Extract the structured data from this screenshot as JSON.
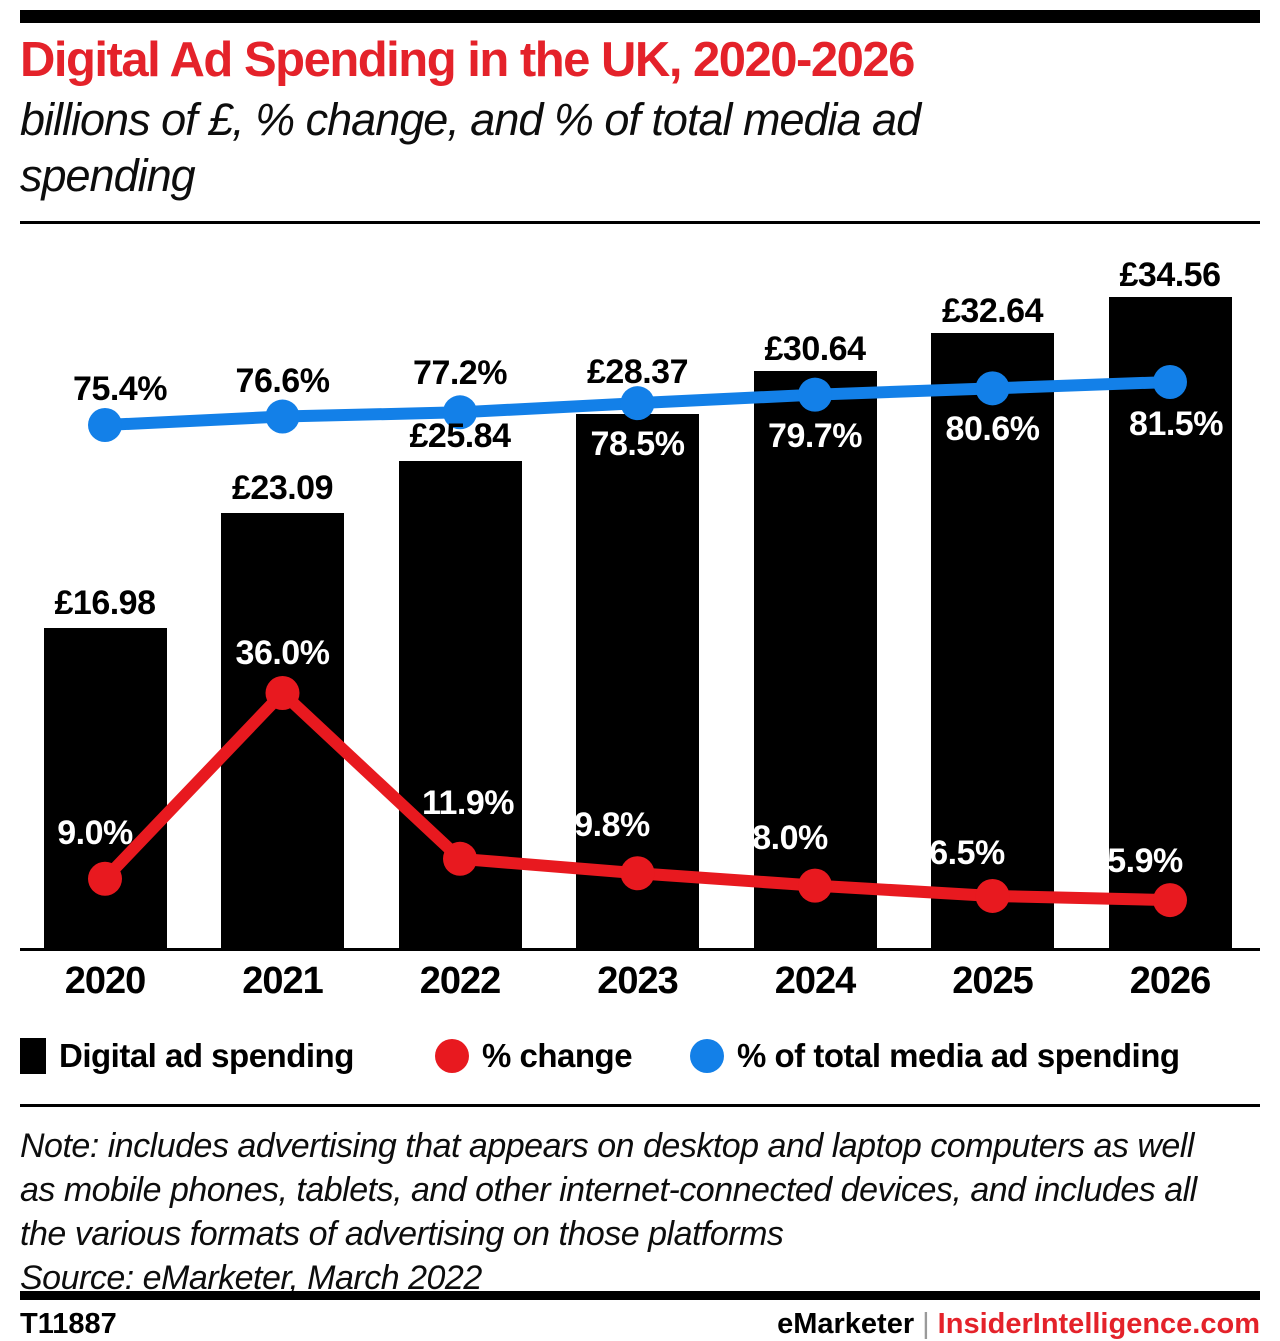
{
  "header": {
    "title": "Digital Ad Spending in the UK, 2020-2026",
    "subtitle_line1": "billions of £, % change, and % of total media ad",
    "subtitle_line2": "spending"
  },
  "chart_data": {
    "type": "bar",
    "title": "Digital Ad Spending in the UK, 2020-2026",
    "subtitle": "billions of £, % change, and % of total media ad spending",
    "categories": [
      "2020",
      "2021",
      "2022",
      "2023",
      "2024",
      "2025",
      "2026"
    ],
    "series": [
      {
        "name": "Digital ad spending",
        "type": "bar",
        "unit": "billions of £",
        "color": "#000000",
        "values": [
          16.98,
          23.09,
          25.84,
          28.37,
          30.64,
          32.64,
          34.56
        ],
        "labels": [
          "£16.98",
          "£23.09",
          "£25.84",
          "£28.37",
          "£30.64",
          "£32.64",
          "£34.56"
        ]
      },
      {
        "name": "% change",
        "type": "line",
        "unit": "%",
        "color": "#e8191f",
        "values": [
          9.0,
          36.0,
          11.9,
          9.8,
          8.0,
          6.5,
          5.9
        ],
        "labels": [
          "9.0%",
          "36.0%",
          "11.9%",
          "9.8%",
          "8.0%",
          "6.5%",
          "5.9%"
        ]
      },
      {
        "name": "% of total media ad spending",
        "type": "line",
        "unit": "%",
        "color": "#1380e8",
        "values": [
          75.4,
          76.6,
          77.2,
          78.5,
          79.7,
          80.6,
          81.5
        ],
        "labels": [
          "75.4%",
          "76.6%",
          "77.2%",
          "78.5%",
          "79.7%",
          "80.6%",
          "81.5%"
        ]
      }
    ],
    "grid": false,
    "legend_position": "bottom",
    "y_axis_shown": false
  },
  "legend": {
    "items": [
      {
        "label": "Digital ad spending",
        "color": "#000000",
        "shape": "square"
      },
      {
        "label": "% change",
        "color": "#e8191f",
        "shape": "circle"
      },
      {
        "label": "% of total media ad spending",
        "color": "#1380e8",
        "shape": "circle"
      }
    ]
  },
  "note": {
    "lines": [
      "Note: includes advertising that appears on desktop and laptop computers as well",
      "as mobile phones, tablets, and other internet-connected devices, and includes all",
      "the various formats of advertising on those platforms"
    ],
    "source": "Source: eMarketer, March 2022"
  },
  "footer": {
    "chart_id": "T11887",
    "brand": "eMarketer",
    "separator": "|",
    "site": "InsiderIntelligence.com"
  }
}
